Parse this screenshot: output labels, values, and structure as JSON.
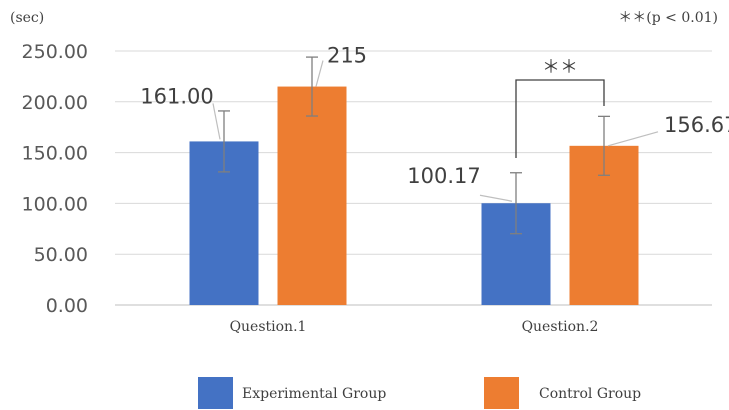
{
  "chart_data": {
    "type": "bar",
    "title": "",
    "ylabel": "(sec)",
    "xlabel": "",
    "ylim": [
      0,
      250
    ],
    "yticks": [
      "0.00",
      "50.00",
      "100.00",
      "150.00",
      "200.00",
      "250.00"
    ],
    "categories": [
      "Question.1",
      "Question.2"
    ],
    "series": [
      {
        "name": "Experimental Group",
        "color": "#4472C4",
        "values": [
          161.0,
          100.17
        ],
        "error": [
          30,
          30
        ],
        "labels": [
          "161.00",
          "100.17"
        ]
      },
      {
        "name": "Control Group",
        "color": "#ED7D31",
        "values": [
          215,
          156.67
        ],
        "error": [
          29,
          29
        ],
        "labels": [
          "215",
          "156.67"
        ]
      }
    ],
    "significance": {
      "category": "Question.2",
      "marker": "＊＊",
      "note": "＊＊(p < 0.01)"
    },
    "grid": true,
    "legend_position": "bottom"
  }
}
